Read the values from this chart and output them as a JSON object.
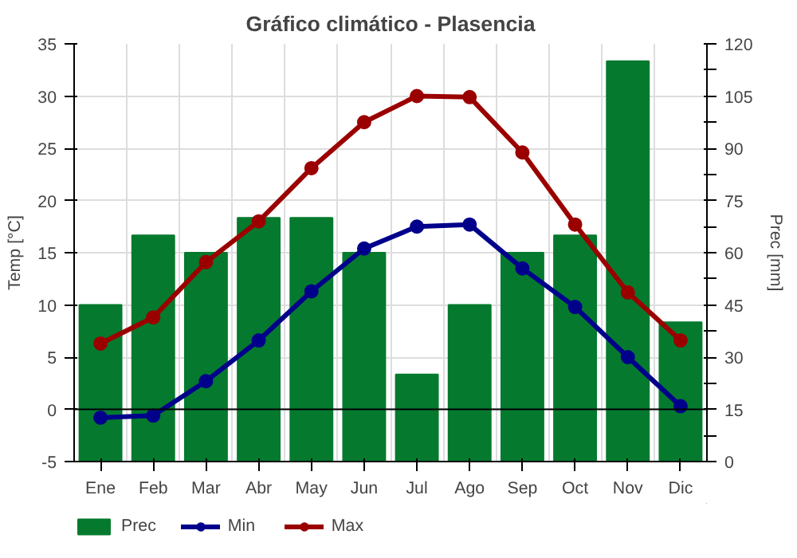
{
  "chart_data": {
    "type": "line",
    "title": "Gráfico climático - Plasencia",
    "ylabel": "Temp [°C]",
    "y2label": "Prec [mm]",
    "categories": [
      "Ene",
      "Feb",
      "Mar",
      "Abr",
      "May",
      "Jun",
      "Jul",
      "Ago",
      "Sep",
      "Oct",
      "Nov",
      "Dic"
    ],
    "series": [
      {
        "name": "Prec",
        "type": "bar",
        "axis": "y2",
        "color": "#057a2e",
        "values": [
          45,
          65,
          60,
          70,
          70,
          60,
          25,
          45,
          60,
          65,
          115,
          40
        ]
      },
      {
        "name": "Min",
        "color": "#00008b",
        "values": [
          -0.8,
          -0.6,
          2.7,
          6.6,
          11.3,
          15.4,
          17.5,
          17.7,
          13.5,
          9.8,
          5.0,
          0.3
        ]
      },
      {
        "name": "Max",
        "color": "#9b0000",
        "values": [
          6.3,
          8.8,
          14.1,
          18.0,
          23.1,
          27.5,
          30.0,
          29.9,
          24.6,
          17.7,
          11.2,
          6.6
        ]
      }
    ],
    "ylim": [
      -5,
      35
    ],
    "yticks": [
      -5,
      0,
      5,
      10,
      15,
      20,
      25,
      30,
      35
    ],
    "y2lim": [
      0,
      120
    ],
    "y2ticks": [
      0,
      {
        "value": 7.5,
        "label": null
      },
      15,
      {
        "value": 22.5,
        "label": null
      },
      30,
      {
        "value": 37.5,
        "label": null
      },
      45,
      {
        "value": 52.5,
        "label": null
      },
      60,
      {
        "value": 67.5,
        "label": null
      },
      75,
      {
        "value": 82.5,
        "label": null
      },
      90,
      {
        "value": 97.5,
        "label": null
      },
      105,
      {
        "value": 112.5,
        "label": null
      },
      120
    ],
    "ref_lines": [
      {
        "axis": "y",
        "value": 0,
        "color": "#000000"
      }
    ],
    "grid": true,
    "legend": "bottom",
    "marker": "circle",
    "line_style": "solid"
  }
}
